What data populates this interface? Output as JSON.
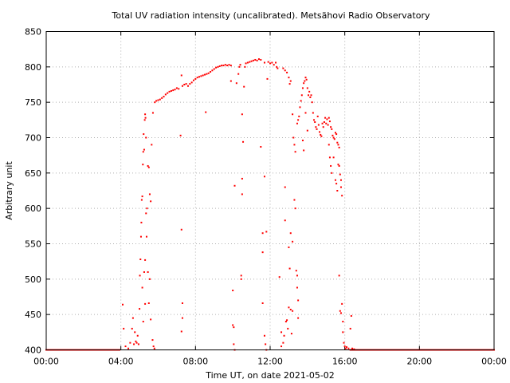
{
  "chart_data": {
    "type": "scatter",
    "title": "Total UV radiation intensity (uncalibrated). Metsähovi Radio Observatory",
    "xlabel": "Time UT, on date 2021-05-02",
    "ylabel": "Arbitrary unit",
    "xlim": [
      0,
      24
    ],
    "ylim": [
      400,
      850
    ],
    "xticks": [
      {
        "value": 0,
        "label": "00:00"
      },
      {
        "value": 4,
        "label": "04:00"
      },
      {
        "value": 8,
        "label": "08:00"
      },
      {
        "value": 12,
        "label": "12:00"
      },
      {
        "value": 16,
        "label": "16:00"
      },
      {
        "value": 20,
        "label": "20:00"
      },
      {
        "value": 24,
        "label": "00:00"
      }
    ],
    "yticks": [
      {
        "value": 400,
        "label": "400"
      },
      {
        "value": 450,
        "label": "450"
      },
      {
        "value": 500,
        "label": "500"
      },
      {
        "value": 550,
        "label": "550"
      },
      {
        "value": 600,
        "label": "600"
      },
      {
        "value": 650,
        "label": "650"
      },
      {
        "value": 700,
        "label": "700"
      },
      {
        "value": 750,
        "label": "750"
      },
      {
        "value": 800,
        "label": "800"
      },
      {
        "value": 850,
        "label": "850"
      }
    ],
    "grid": true,
    "marker_color": "#ff0000",
    "series": [
      {
        "name": "",
        "points": [
          [
            0.0,
            400
          ],
          [
            0.5,
            400
          ],
          [
            1.0,
            400
          ],
          [
            1.5,
            400
          ],
          [
            2.0,
            400
          ],
          [
            2.5,
            400
          ],
          [
            3.0,
            400
          ],
          [
            3.5,
            400
          ],
          [
            3.9,
            400
          ],
          [
            4.1,
            464
          ],
          [
            4.15,
            430
          ],
          [
            4.25,
            405
          ],
          [
            4.4,
            402
          ],
          [
            4.5,
            410
          ],
          [
            4.6,
            430
          ],
          [
            4.65,
            445
          ],
          [
            4.7,
            408
          ],
          [
            4.75,
            425
          ],
          [
            4.8,
            412
          ],
          [
            4.85,
            410
          ],
          [
            4.9,
            420
          ],
          [
            4.95,
            408
          ],
          [
            5.0,
            458
          ],
          [
            5.02,
            505
          ],
          [
            5.05,
            528
          ],
          [
            5.08,
            560
          ],
          [
            5.1,
            580
          ],
          [
            5.12,
            612
          ],
          [
            5.15,
            617
          ],
          [
            5.18,
            662
          ],
          [
            5.2,
            680
          ],
          [
            5.22,
            705
          ],
          [
            5.25,
            683
          ],
          [
            5.28,
            725
          ],
          [
            5.3,
            733
          ],
          [
            5.32,
            728
          ],
          [
            5.35,
            700
          ],
          [
            5.15,
            488
          ],
          [
            5.2,
            440
          ],
          [
            5.25,
            510
          ],
          [
            5.3,
            527
          ],
          [
            5.35,
            593
          ],
          [
            5.38,
            560
          ],
          [
            5.4,
            600
          ],
          [
            5.45,
            660
          ],
          [
            5.5,
            658
          ],
          [
            5.55,
            620
          ],
          [
            5.6,
            610
          ],
          [
            5.65,
            690
          ],
          [
            5.45,
            510
          ],
          [
            5.55,
            500
          ],
          [
            5.3,
            465
          ],
          [
            5.5,
            466
          ],
          [
            5.6,
            443
          ],
          [
            5.7,
            414
          ],
          [
            5.75,
            405
          ],
          [
            5.8,
            402
          ],
          [
            5.72,
            735
          ],
          [
            5.82,
            750
          ],
          [
            5.9,
            752
          ],
          [
            6.0,
            753
          ],
          [
            6.1,
            754
          ],
          [
            6.2,
            756
          ],
          [
            6.3,
            758
          ],
          [
            6.4,
            761
          ],
          [
            6.5,
            763
          ],
          [
            6.6,
            765
          ],
          [
            6.7,
            766
          ],
          [
            6.8,
            767
          ],
          [
            6.9,
            768
          ],
          [
            7.0,
            770
          ],
          [
            7.1,
            769
          ],
          [
            7.2,
            703
          ],
          [
            7.25,
            788
          ],
          [
            7.25,
            570
          ],
          [
            7.3,
            466
          ],
          [
            7.3,
            445
          ],
          [
            7.25,
            426
          ],
          [
            7.3,
            773
          ],
          [
            7.4,
            775
          ],
          [
            7.5,
            776
          ],
          [
            7.6,
            773
          ],
          [
            7.7,
            776
          ],
          [
            7.8,
            778
          ],
          [
            7.9,
            781
          ],
          [
            8.0,
            783
          ],
          [
            8.1,
            785
          ],
          [
            8.2,
            786
          ],
          [
            8.3,
            787
          ],
          [
            8.4,
            788
          ],
          [
            8.5,
            789
          ],
          [
            8.55,
            736
          ],
          [
            8.6,
            790
          ],
          [
            8.7,
            791
          ],
          [
            8.8,
            793
          ],
          [
            8.9,
            795
          ],
          [
            9.0,
            797
          ],
          [
            9.1,
            799
          ],
          [
            9.2,
            800
          ],
          [
            9.3,
            801
          ],
          [
            9.4,
            802
          ],
          [
            9.5,
            802
          ],
          [
            9.6,
            803
          ],
          [
            9.7,
            802
          ],
          [
            9.8,
            803
          ],
          [
            9.9,
            802
          ],
          [
            9.9,
            780
          ],
          [
            10.0,
            484
          ],
          [
            10.0,
            435
          ],
          [
            10.05,
            432
          ],
          [
            10.05,
            408
          ],
          [
            10.1,
            632
          ],
          [
            10.1,
            400
          ],
          [
            10.2,
            777
          ],
          [
            10.3,
            790
          ],
          [
            10.35,
            800
          ],
          [
            10.4,
            803
          ],
          [
            10.45,
            505
          ],
          [
            10.45,
            500
          ],
          [
            10.5,
            642
          ],
          [
            10.5,
            620
          ],
          [
            10.5,
            733
          ],
          [
            10.55,
            694
          ],
          [
            10.6,
            772
          ],
          [
            10.65,
            800
          ],
          [
            10.7,
            805
          ],
          [
            10.8,
            806
          ],
          [
            10.9,
            807
          ],
          [
            11.0,
            808
          ],
          [
            11.1,
            809
          ],
          [
            11.2,
            810
          ],
          [
            11.3,
            809
          ],
          [
            11.4,
            811
          ],
          [
            11.5,
            810
          ],
          [
            11.5,
            687
          ],
          [
            11.6,
            565
          ],
          [
            11.6,
            538
          ],
          [
            11.6,
            466
          ],
          [
            11.7,
            645
          ],
          [
            11.8,
            567
          ],
          [
            11.7,
            420
          ],
          [
            11.75,
            408
          ],
          [
            11.8,
            400
          ],
          [
            11.85,
            783
          ],
          [
            11.7,
            806
          ],
          [
            11.9,
            807
          ],
          [
            12.0,
            805
          ],
          [
            12.1,
            806
          ],
          [
            12.2,
            803
          ],
          [
            12.3,
            806
          ],
          [
            12.35,
            800
          ],
          [
            12.4,
            798
          ],
          [
            12.5,
            503
          ],
          [
            12.6,
            425
          ],
          [
            12.6,
            405
          ],
          [
            12.7,
            410
          ],
          [
            12.75,
            420
          ],
          [
            12.8,
            583
          ],
          [
            12.8,
            630
          ],
          [
            12.85,
            440
          ],
          [
            12.9,
            442
          ],
          [
            12.95,
            430
          ],
          [
            13.0,
            460
          ],
          [
            13.0,
            545
          ],
          [
            13.05,
            515
          ],
          [
            13.1,
            565
          ],
          [
            13.1,
            457
          ],
          [
            13.15,
            423
          ],
          [
            13.2,
            455
          ],
          [
            13.2,
            553
          ],
          [
            12.7,
            798
          ],
          [
            12.8,
            795
          ],
          [
            12.9,
            792
          ],
          [
            13.0,
            785
          ],
          [
            13.1,
            780
          ],
          [
            13.05,
            776
          ],
          [
            13.2,
            733
          ],
          [
            13.25,
            700
          ],
          [
            13.3,
            690
          ],
          [
            13.35,
            680
          ],
          [
            13.3,
            612
          ],
          [
            13.35,
            600
          ],
          [
            13.4,
            512
          ],
          [
            13.45,
            505
          ],
          [
            13.45,
            488
          ],
          [
            13.5,
            470
          ],
          [
            13.5,
            445
          ],
          [
            13.45,
            720
          ],
          [
            13.5,
            725
          ],
          [
            13.55,
            730
          ],
          [
            13.6,
            743
          ],
          [
            13.65,
            752
          ],
          [
            13.7,
            760
          ],
          [
            13.75,
            770
          ],
          [
            13.8,
            777
          ],
          [
            13.85,
            780
          ],
          [
            13.9,
            785
          ],
          [
            13.95,
            782
          ],
          [
            14.0,
            770
          ],
          [
            14.05,
            760
          ],
          [
            14.1,
            765
          ],
          [
            14.15,
            757
          ],
          [
            14.2,
            760
          ],
          [
            14.25,
            750
          ],
          [
            13.8,
            682
          ],
          [
            13.75,
            696
          ],
          [
            13.9,
            735
          ],
          [
            14.0,
            710
          ],
          [
            14.3,
            735
          ],
          [
            14.35,
            725
          ],
          [
            14.4,
            722
          ],
          [
            14.45,
            715
          ],
          [
            14.5,
            712
          ],
          [
            14.55,
            730
          ],
          [
            14.6,
            718
          ],
          [
            14.65,
            708
          ],
          [
            14.7,
            704
          ],
          [
            14.75,
            702
          ],
          [
            14.8,
            720
          ],
          [
            14.85,
            715
          ],
          [
            14.9,
            722
          ],
          [
            14.95,
            728
          ],
          [
            15.0,
            720
          ],
          [
            15.05,
            726
          ],
          [
            15.1,
            718
          ],
          [
            15.15,
            728
          ],
          [
            15.2,
            723
          ],
          [
            15.25,
            715
          ],
          [
            15.3,
            712
          ],
          [
            15.35,
            703
          ],
          [
            15.4,
            700
          ],
          [
            15.45,
            698
          ],
          [
            15.5,
            707
          ],
          [
            15.55,
            705
          ],
          [
            15.6,
            693
          ],
          [
            15.65,
            690
          ],
          [
            15.7,
            686
          ],
          [
            15.15,
            690
          ],
          [
            15.2,
            672
          ],
          [
            15.25,
            660
          ],
          [
            15.3,
            650
          ],
          [
            15.4,
            672
          ],
          [
            15.5,
            640
          ],
          [
            15.55,
            635
          ],
          [
            15.6,
            625
          ],
          [
            15.65,
            662
          ],
          [
            15.7,
            660
          ],
          [
            15.75,
            648
          ],
          [
            15.8,
            640
          ],
          [
            15.8,
            630
          ],
          [
            15.85,
            618
          ],
          [
            15.7,
            505
          ],
          [
            15.75,
            455
          ],
          [
            15.8,
            452
          ],
          [
            15.85,
            465
          ],
          [
            15.9,
            440
          ],
          [
            15.9,
            425
          ],
          [
            15.95,
            410
          ],
          [
            16.0,
            405
          ],
          [
            16.05,
            402
          ],
          [
            16.1,
            404
          ],
          [
            16.2,
            402
          ],
          [
            16.35,
            448
          ],
          [
            16.3,
            430
          ],
          [
            16.4,
            402
          ],
          [
            16.5,
            401
          ],
          [
            16.7,
            400
          ],
          [
            17.0,
            400
          ],
          [
            17.5,
            400
          ],
          [
            18.0,
            400
          ],
          [
            18.5,
            400
          ],
          [
            19.0,
            400
          ],
          [
            19.5,
            400
          ],
          [
            20.0,
            400
          ],
          [
            20.5,
            400
          ],
          [
            21.0,
            400
          ],
          [
            21.5,
            400
          ],
          [
            22.0,
            400
          ],
          [
            22.5,
            400
          ],
          [
            23.0,
            400
          ],
          [
            23.5,
            400
          ],
          [
            24.0,
            400
          ]
        ]
      }
    ]
  }
}
